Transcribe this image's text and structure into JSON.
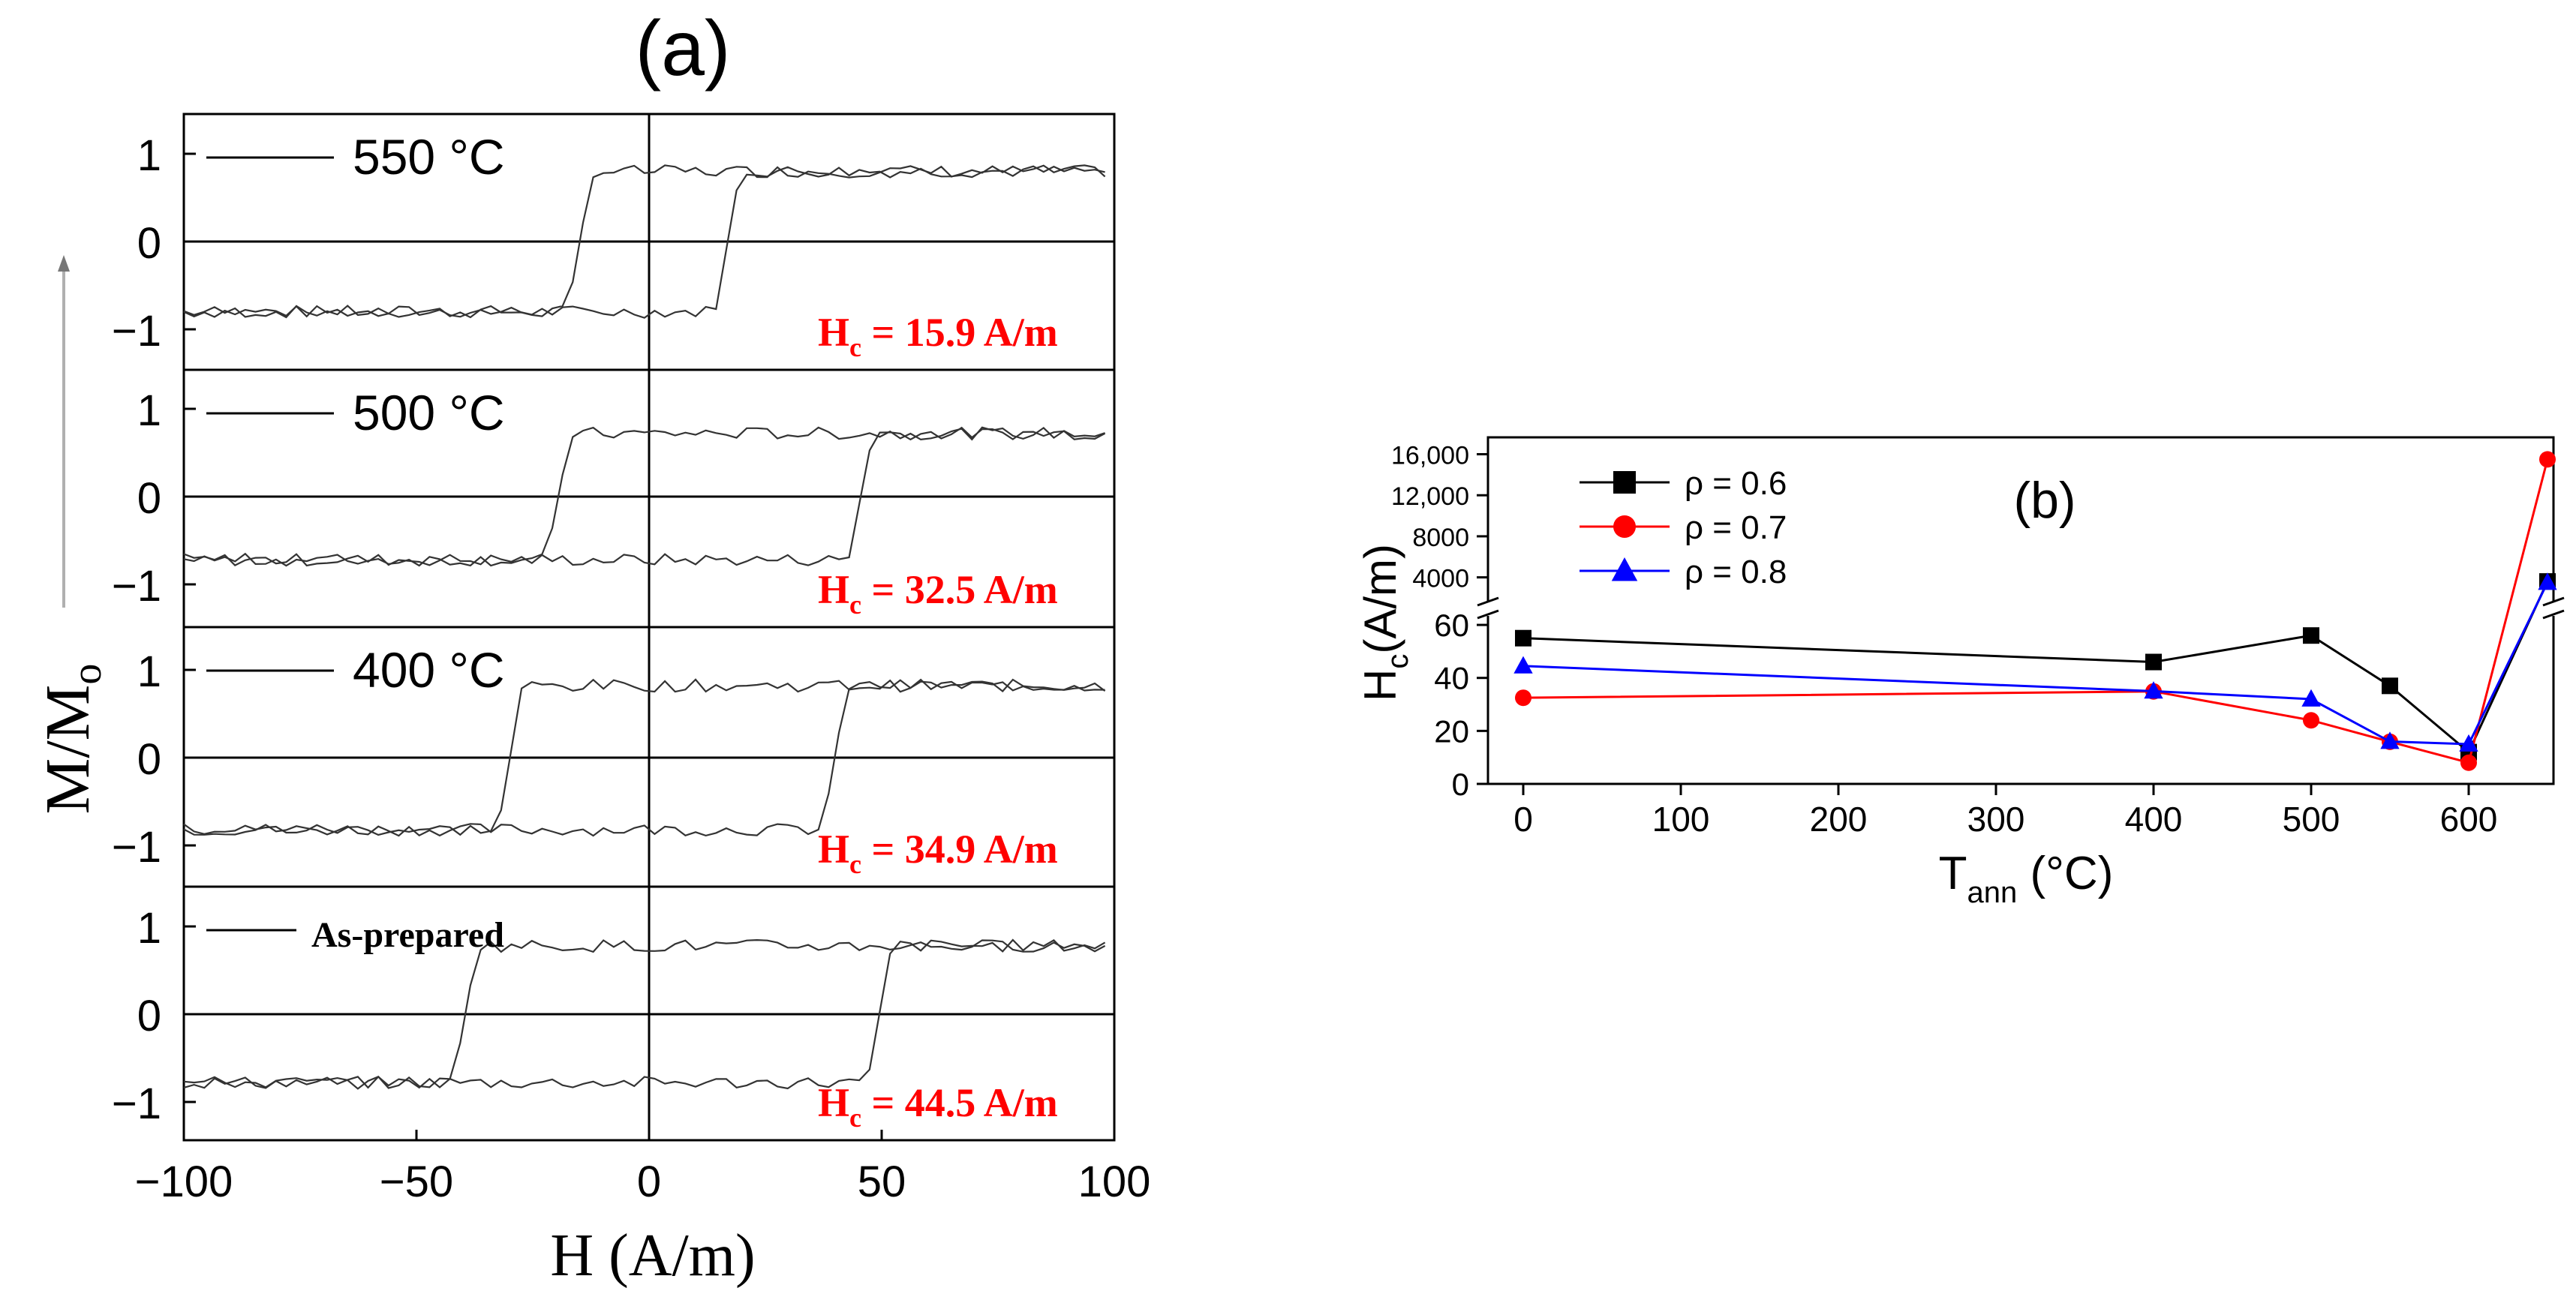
{
  "chart_data": [
    {
      "id": "a",
      "type": "line",
      "title": "(a)",
      "xlabel": "H (A/m)",
      "ylabel_main": "M/M",
      "ylabel_sub": "o",
      "xlim": [
        -100,
        100
      ],
      "ylim": [
        -1.4,
        1.4
      ],
      "xticks": [
        -100,
        -50,
        0,
        50,
        100
      ],
      "xtick_labels": [
        "−100",
        "−50",
        "0",
        "50",
        "100"
      ],
      "yticks": [
        1,
        0,
        -1
      ],
      "ytick_labels": [
        "1",
        "0",
        "−1"
      ],
      "panels": [
        {
          "label": "550 °C",
          "hc_prefix": "H",
          "hc_sub": "c",
          "hc_value": " = 15.9 A/m",
          "hc": 15.9,
          "shift": 1.0,
          "saturation": 0.8
        },
        {
          "label": "500 °C",
          "hc_prefix": "H",
          "hc_sub": "c",
          "hc_value": " = 32.5 A/m",
          "hc": 32.5,
          "shift": 13.0,
          "saturation": 0.72
        },
        {
          "label": "400 °C",
          "hc_prefix": "H",
          "hc_sub": "c",
          "hc_value": " = 34.9 A/m",
          "hc": 34.9,
          "shift": 5.0,
          "saturation": 0.82
        },
        {
          "label": "As-prepared",
          "hc_prefix": "H",
          "hc_sub": "c",
          "hc_value": " = 44.5 A/m",
          "hc": 44.5,
          "shift": 5.0,
          "saturation": 0.78
        }
      ]
    },
    {
      "id": "b",
      "type": "line",
      "title": "(b)",
      "xlabel_main": "T",
      "xlabel_sub": "ann",
      "xlabel_unit": " (°C)",
      "ylabel_main": "H",
      "ylabel_sub": "c",
      "ylabel_unit": "(A/m)",
      "xlim": [
        -10,
        670
      ],
      "xticks": [
        0,
        100,
        200,
        300,
        400,
        500,
        600
      ],
      "ylim_lower": [
        0,
        62
      ],
      "yticks_lower": [
        0,
        20,
        40,
        60
      ],
      "ylim_upper": [
        2000,
        17500
      ],
      "yticks_upper": [
        4000,
        8000,
        12000,
        16000
      ],
      "ytick_labels_upper": [
        "4000",
        "8000",
        "12,000",
        "16,000"
      ],
      "series": [
        {
          "name": "ρ = 0.6",
          "color": "#000000",
          "marker": "square",
          "x": [
            0,
            400,
            500,
            550,
            600,
            650
          ],
          "y": [
            55,
            46,
            56,
            37,
            12,
            3600
          ]
        },
        {
          "name": "ρ = 0.7",
          "color": "#ff0000",
          "marker": "circle",
          "x": [
            0,
            400,
            500,
            550,
            600,
            650
          ],
          "y": [
            32.5,
            34.9,
            24,
            15.9,
            8,
            15500
          ]
        },
        {
          "name": "ρ = 0.8",
          "color": "#0000ff",
          "marker": "triangle",
          "x": [
            0,
            400,
            500,
            550,
            600,
            650
          ],
          "y": [
            44.5,
            35,
            32,
            16,
            15,
            3500
          ]
        }
      ]
    }
  ]
}
